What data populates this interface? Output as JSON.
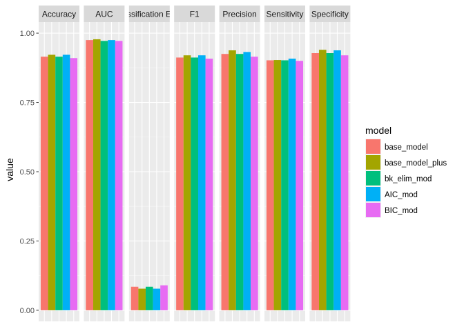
{
  "chart_data": {
    "type": "bar",
    "ylabel": "value",
    "xlabel": "",
    "ylim": [
      -0.04,
      1.04
    ],
    "y_ticks": [
      "0.00",
      "0.25",
      "0.50",
      "0.75",
      "1.00"
    ],
    "y_tick_values": [
      0,
      0.25,
      0.5,
      0.75,
      1
    ],
    "facets": [
      "Accuracy",
      "AUC",
      "Classification Error",
      "F1",
      "Precision",
      "Sensitivity",
      "Specificity"
    ],
    "legend": {
      "title": "model",
      "position": "right"
    },
    "series": [
      {
        "name": "base_model",
        "color": "#F8766D",
        "values": [
          0.915,
          0.975,
          0.085,
          0.912,
          0.925,
          0.902,
          0.928
        ]
      },
      {
        "name": "base_model_plus",
        "color": "#A3A500",
        "values": [
          0.922,
          0.978,
          0.078,
          0.92,
          0.938,
          0.903,
          0.94
        ]
      },
      {
        "name": "bk_elim_mod",
        "color": "#00BF7D",
        "values": [
          0.915,
          0.972,
          0.085,
          0.912,
          0.925,
          0.902,
          0.928
        ]
      },
      {
        "name": "AIC_mod",
        "color": "#00B0F6",
        "values": [
          0.922,
          0.975,
          0.078,
          0.92,
          0.932,
          0.908,
          0.938
        ]
      },
      {
        "name": "BIC_mod",
        "color": "#E76BF3",
        "values": [
          0.91,
          0.972,
          0.09,
          0.908,
          0.915,
          0.9,
          0.92
        ]
      }
    ],
    "grid": true
  }
}
